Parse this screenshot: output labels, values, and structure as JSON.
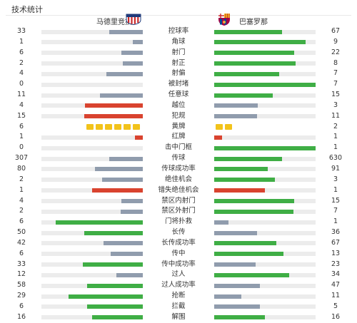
{
  "header": {
    "title": "技术统计",
    "home_team": "马德里竞技",
    "away_team": "巴塞罗那",
    "home_logo": "atletico-madrid-crest-icon",
    "away_logo": "fc-barcelona-crest-icon"
  },
  "colors": {
    "gray": "#909cad",
    "green": "#3fae45",
    "red": "#d9432f",
    "yellow": "#f2c31b",
    "track": "#ececec"
  },
  "stats": [
    {
      "label": "控球率",
      "home": "33",
      "away": "67",
      "home_frac": 0.33,
      "away_frac": 0.67,
      "home_color": "gray",
      "away_color": "green"
    },
    {
      "label": "角球",
      "home": "1",
      "away": "9",
      "home_frac": 0.1,
      "away_frac": 0.9,
      "home_color": "gray",
      "away_color": "green"
    },
    {
      "label": "射门",
      "home": "6",
      "away": "22",
      "home_frac": 0.21,
      "away_frac": 0.79,
      "home_color": "gray",
      "away_color": "green"
    },
    {
      "label": "射正",
      "home": "2",
      "away": "8",
      "home_frac": 0.2,
      "away_frac": 0.8,
      "home_color": "gray",
      "away_color": "green"
    },
    {
      "label": "射偏",
      "home": "4",
      "away": "7",
      "home_frac": 0.36,
      "away_frac": 0.64,
      "home_color": "gray",
      "away_color": "green"
    },
    {
      "label": "被封堵",
      "home": "0",
      "away": "7",
      "home_frac": 0.0,
      "away_frac": 1.0,
      "home_color": "gray",
      "away_color": "green"
    },
    {
      "label": "任意球",
      "home": "11",
      "away": "15",
      "home_frac": 0.42,
      "away_frac": 0.58,
      "home_color": "gray",
      "away_color": "green"
    },
    {
      "label": "越位",
      "home": "4",
      "away": "3",
      "home_frac": 0.57,
      "away_frac": 0.43,
      "home_color": "red",
      "away_color": "gray"
    },
    {
      "label": "犯规",
      "home": "15",
      "away": "11",
      "home_frac": 0.58,
      "away_frac": 0.42,
      "home_color": "red",
      "away_color": "gray"
    },
    {
      "label": "黄牌",
      "home": "6",
      "away": "2",
      "type": "cards",
      "card_color": "yellow"
    },
    {
      "label": "红牌",
      "home": "1",
      "away": "1",
      "home_frac": 0.08,
      "away_frac": 0.08,
      "home_color": "red",
      "away_color": "red"
    },
    {
      "label": "击中门框",
      "home": "0",
      "away": "1",
      "home_frac": 0.0,
      "away_frac": 1.0,
      "home_color": "gray",
      "away_color": "green"
    },
    {
      "label": "传球",
      "home": "307",
      "away": "630",
      "home_frac": 0.33,
      "away_frac": 0.67,
      "home_color": "gray",
      "away_color": "green"
    },
    {
      "label": "传球成功率",
      "home": "80",
      "away": "91",
      "home_frac": 0.47,
      "away_frac": 0.53,
      "home_color": "gray",
      "away_color": "green"
    },
    {
      "label": "绝佳机会",
      "home": "2",
      "away": "3",
      "home_frac": 0.4,
      "away_frac": 0.6,
      "home_color": "gray",
      "away_color": "green"
    },
    {
      "label": "错失绝佳机会",
      "home": "1",
      "away": "1",
      "home_frac": 0.5,
      "away_frac": 0.5,
      "home_color": "red",
      "away_color": "red"
    },
    {
      "label": "禁区内射门",
      "home": "4",
      "away": "15",
      "home_frac": 0.21,
      "away_frac": 0.79,
      "home_color": "gray",
      "away_color": "green"
    },
    {
      "label": "禁区外射门",
      "home": "2",
      "away": "7",
      "home_frac": 0.22,
      "away_frac": 0.78,
      "home_color": "gray",
      "away_color": "green"
    },
    {
      "label": "门将扑救",
      "home": "6",
      "away": "1",
      "home_frac": 0.86,
      "away_frac": 0.14,
      "home_color": "green",
      "away_color": "gray"
    },
    {
      "label": "长传",
      "home": "50",
      "away": "36",
      "home_frac": 0.58,
      "away_frac": 0.42,
      "home_color": "green",
      "away_color": "gray"
    },
    {
      "label": "长传成功率",
      "home": "42",
      "away": "67",
      "home_frac": 0.39,
      "away_frac": 0.61,
      "home_color": "gray",
      "away_color": "green"
    },
    {
      "label": "传中",
      "home": "6",
      "away": "13",
      "home_frac": 0.32,
      "away_frac": 0.68,
      "home_color": "gray",
      "away_color": "green"
    },
    {
      "label": "传中成功率",
      "home": "33",
      "away": "23",
      "home_frac": 0.59,
      "away_frac": 0.41,
      "home_color": "green",
      "away_color": "gray"
    },
    {
      "label": "过人",
      "home": "12",
      "away": "34",
      "home_frac": 0.26,
      "away_frac": 0.74,
      "home_color": "gray",
      "away_color": "green"
    },
    {
      "label": "过人成功率",
      "home": "58",
      "away": "47",
      "home_frac": 0.55,
      "away_frac": 0.45,
      "home_color": "green",
      "away_color": "gray"
    },
    {
      "label": "抢断",
      "home": "29",
      "away": "11",
      "home_frac": 0.73,
      "away_frac": 0.27,
      "home_color": "green",
      "away_color": "gray"
    },
    {
      "label": "拦截",
      "home": "6",
      "away": "5",
      "home_frac": 0.55,
      "away_frac": 0.45,
      "home_color": "green",
      "away_color": "gray"
    },
    {
      "label": "解围",
      "home": "16",
      "away": "16",
      "home_frac": 0.5,
      "away_frac": 0.5,
      "home_color": "green",
      "away_color": "green"
    }
  ]
}
